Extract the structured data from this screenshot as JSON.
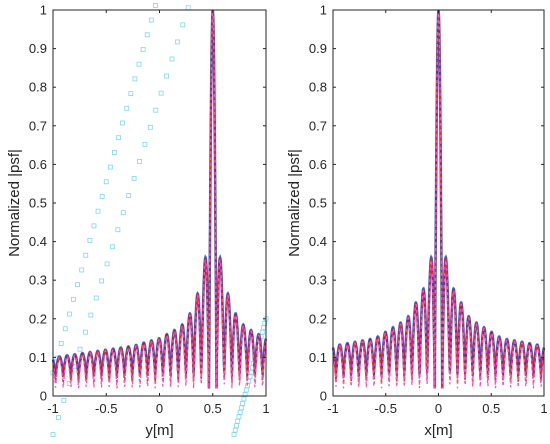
{
  "chart_data": [
    {
      "type": "line",
      "xlabel": "y[m]",
      "ylabel": "Normalized |psf|",
      "xlim": [
        -1,
        1
      ],
      "ylim": [
        0,
        1
      ],
      "xticks": [
        "-1",
        "-0.5",
        "0",
        "0.5",
        "1"
      ],
      "yticks": [
        "0",
        "0.1",
        "0.2",
        "0.3",
        "0.4",
        "0.5",
        "0.6",
        "0.7",
        "0.8",
        "0.9",
        "1"
      ],
      "grid": false,
      "peak": {
        "x": 0.5,
        "y": 1.0
      },
      "envelope": {
        "x": [
          -1,
          -0.75,
          -0.5,
          -0.25,
          0,
          0.2,
          0.3,
          0.4,
          0.45,
          0.55,
          0.6,
          0.7,
          0.8,
          1
        ],
        "y": [
          0.1,
          0.11,
          0.12,
          0.13,
          0.15,
          0.18,
          0.22,
          0.3,
          0.4,
          0.4,
          0.3,
          0.22,
          0.18,
          0.15
        ]
      },
      "sidelobe_minimum": 0.06,
      "series_colors": [
        "#3a7bd5",
        "#7d2a7a",
        "#e0302c",
        "#ff4fc4"
      ],
      "scatter_color": "#7fd6f2"
    },
    {
      "type": "line",
      "xlabel": "x[m]",
      "ylabel": "Normalized |psf|",
      "xlim": [
        -1,
        1
      ],
      "ylim": [
        0,
        1
      ],
      "xticks": [
        "-1",
        "-0.5",
        "0",
        "0.5",
        "1"
      ],
      "yticks": [
        "0",
        "0.1",
        "0.2",
        "0.3",
        "0.4",
        "0.5",
        "0.6",
        "0.7",
        "0.8",
        "0.9",
        "1"
      ],
      "grid": false,
      "peak": {
        "x": 0,
        "y": 1.0
      },
      "envelope": {
        "x": [
          -1,
          -0.6,
          -0.3,
          -0.1,
          -0.05,
          0.05,
          0.1,
          0.3,
          0.6,
          1
        ],
        "y": [
          0.13,
          0.15,
          0.2,
          0.3,
          0.4,
          0.4,
          0.3,
          0.2,
          0.15,
          0.13
        ]
      },
      "sidelobe_minimum": 0.06,
      "series_colors": [
        "#3a7bd5",
        "#7d2a7a",
        "#e0302c",
        "#ff4fc4"
      ]
    }
  ]
}
